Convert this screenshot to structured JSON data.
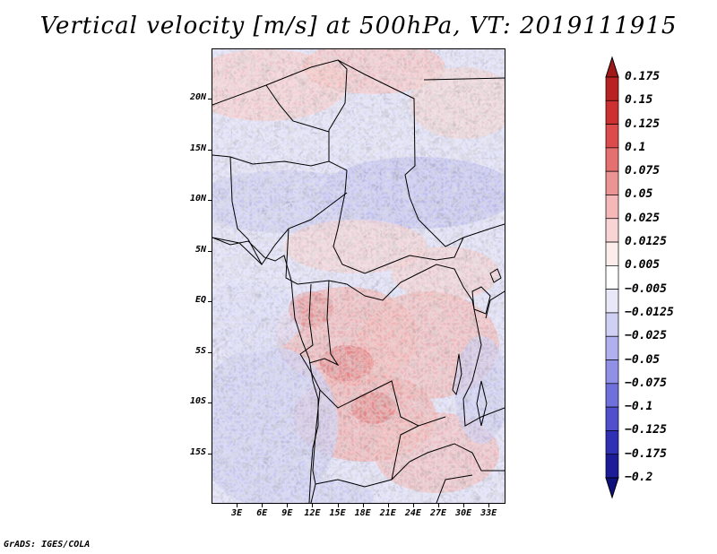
{
  "title": "Vertical velocity [m/s] at 500hPa, VT: 2019111915",
  "footer": "GrADS: IGES/COLA",
  "map": {
    "lon_range": [
      0,
      35
    ],
    "lat_range": [
      -20,
      25
    ],
    "lat_ticks": [
      "20N",
      "15N",
      "10N",
      "5N",
      "EQ",
      "5S",
      "10S",
      "15S"
    ],
    "lat_values": [
      20,
      15,
      10,
      5,
      0,
      -5,
      -10,
      -15
    ],
    "lon_ticks": [
      "3E",
      "6E",
      "9E",
      "12E",
      "15E",
      "18E",
      "21E",
      "24E",
      "27E",
      "30E",
      "33E"
    ],
    "lon_values": [
      3,
      6,
      9,
      12,
      15,
      18,
      21,
      24,
      27,
      30,
      33
    ]
  },
  "colorbar": {
    "labels": [
      "0.175",
      "0.15",
      "0.125",
      "0.1",
      "0.075",
      "0.05",
      "0.025",
      "0.0125",
      "0.005",
      "−0.005",
      "−0.0125",
      "−0.025",
      "−0.05",
      "−0.075",
      "−0.1",
      "−0.125",
      "−0.175",
      "−0.2"
    ],
    "colors": [
      "#a01818",
      "#b82222",
      "#cc3030",
      "#dc4c4c",
      "#e47070",
      "#ec9494",
      "#f4b8b8",
      "#f8d4d4",
      "#fcecec",
      "#ffffff",
      "#e8e8f8",
      "#d0d0f4",
      "#b0b0ee",
      "#9090e6",
      "#7070dc",
      "#5050cc",
      "#3030b4",
      "#1c1c98",
      "#10107c"
    ]
  }
}
